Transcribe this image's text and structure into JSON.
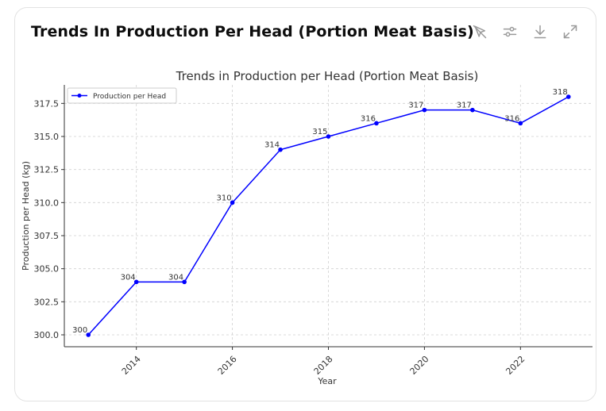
{
  "card": {
    "title": "Trends In Production Per Head (Portion Meat Basis)"
  },
  "toolbar": {
    "icons": [
      "no-interaction-icon",
      "sliders-icon",
      "download-icon",
      "expand-icon"
    ]
  },
  "colors": {
    "line": "#0000ff",
    "grid": "#d0d0d0",
    "axis": "#333333",
    "text": "#333333"
  },
  "chart_data": {
    "type": "line",
    "title": "Trends in Production per Head (Portion Meat Basis)",
    "xlabel": "Year",
    "ylabel": "Production per Head (kg)",
    "x": [
      2013,
      2014,
      2015,
      2016,
      2017,
      2018,
      2019,
      2020,
      2021,
      2022,
      2023
    ],
    "series": [
      {
        "name": "Production per Head",
        "values": [
          300,
          304,
          304,
          310,
          314,
          315,
          316,
          317,
          317,
          316,
          318
        ]
      }
    ],
    "data_labels": [
      "300",
      "304",
      "304",
      "310",
      "314",
      "315",
      "316",
      "317",
      "317",
      "316",
      "318"
    ],
    "xticks": [
      2014,
      2016,
      2018,
      2020,
      2022
    ],
    "xtick_labels": [
      "2014",
      "2016",
      "2018",
      "2020",
      "2022"
    ],
    "yticks": [
      300.0,
      302.5,
      305.0,
      307.5,
      310.0,
      312.5,
      315.0,
      317.5
    ],
    "ytick_labels": [
      "300.0",
      "302.5",
      "305.0",
      "307.5",
      "310.0",
      "312.5",
      "315.0",
      "317.5"
    ],
    "xlim": [
      2012.5,
      2023.5
    ],
    "ylim": [
      299.1,
      318.9
    ],
    "grid": true,
    "legend": "top-left"
  }
}
